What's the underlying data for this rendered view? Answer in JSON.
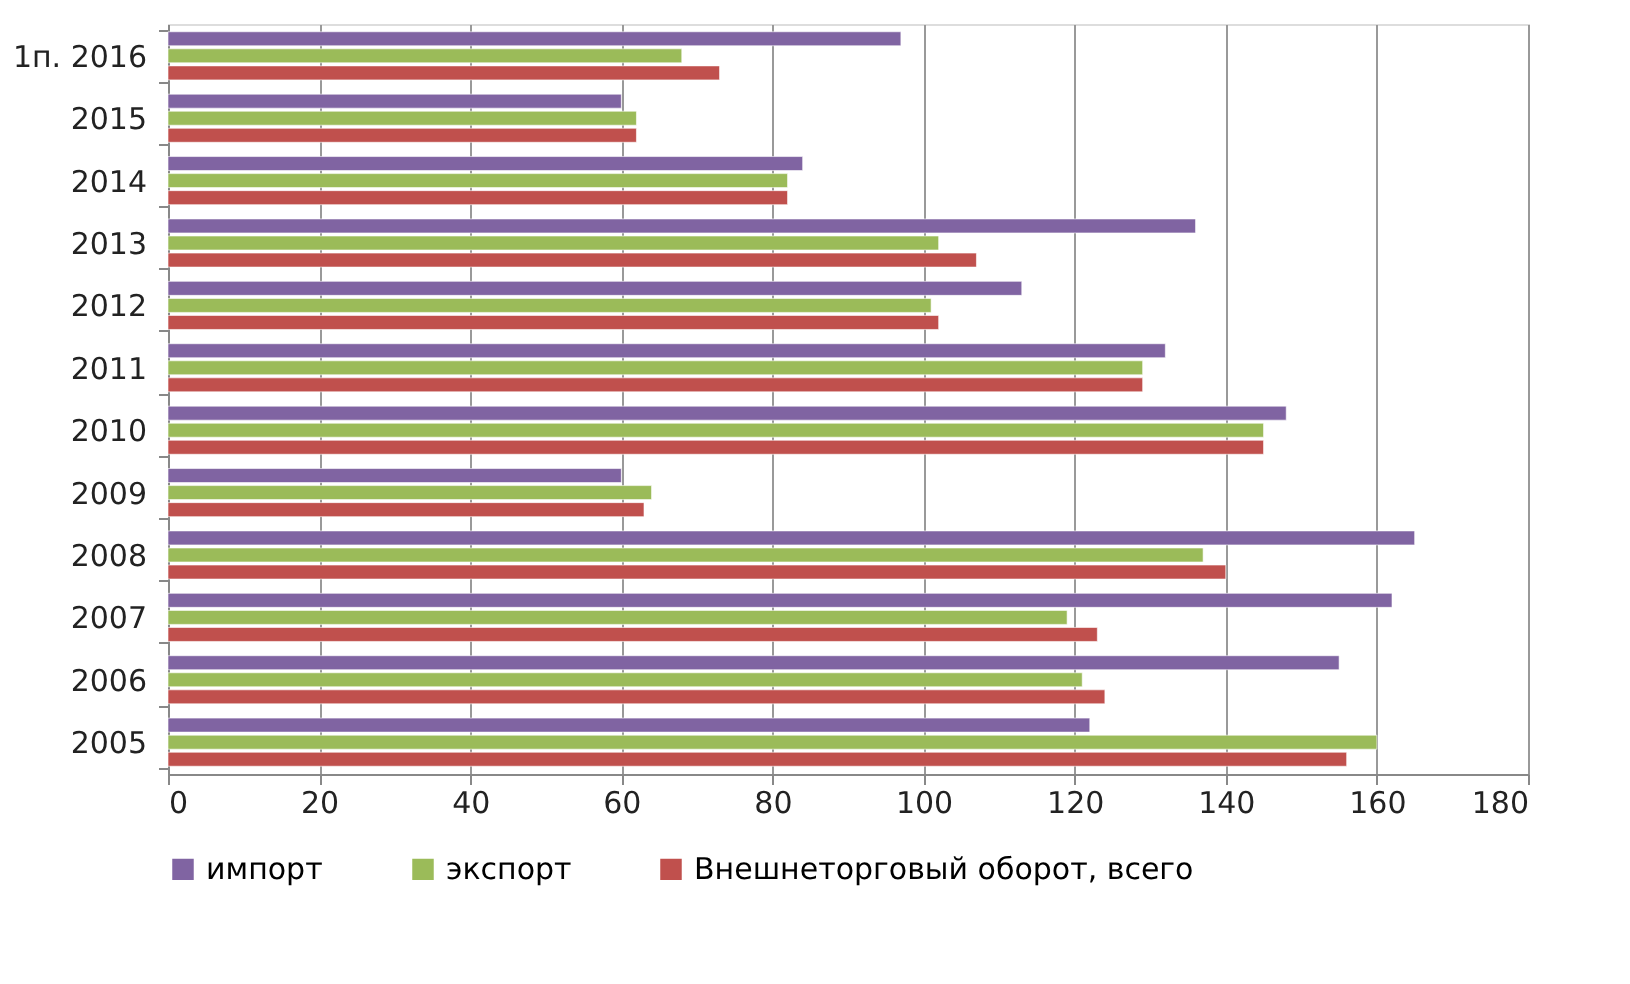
{
  "chart_data": {
    "type": "bar",
    "orientation": "horizontal",
    "categories": [
      "1п. 2016",
      "2015",
      "2014",
      "2013",
      "2012",
      "2011",
      "2010",
      "2009",
      "2008",
      "2007",
      "2006",
      "2005"
    ],
    "series": [
      {
        "name": "импорт",
        "color": "#8064a2",
        "values": [
          97,
          60,
          84,
          136,
          113,
          132,
          148,
          60,
          165,
          162,
          155,
          122
        ]
      },
      {
        "name": "экспорт",
        "color": "#9bbb59",
        "values": [
          68,
          62,
          82,
          102,
          101,
          129,
          145,
          64,
          137,
          119,
          121,
          160
        ]
      },
      {
        "name": "Внешнеторговый оборот, всего",
        "color": "#c0504d",
        "values": [
          73,
          62,
          82,
          107,
          102,
          129,
          145,
          63,
          140,
          123,
          124,
          156
        ]
      }
    ],
    "xlim": [
      0,
      180
    ],
    "xticks": [
      0,
      20,
      40,
      60,
      80,
      100,
      120,
      140,
      160,
      180
    ],
    "grid": "x",
    "legend": "bottom"
  }
}
